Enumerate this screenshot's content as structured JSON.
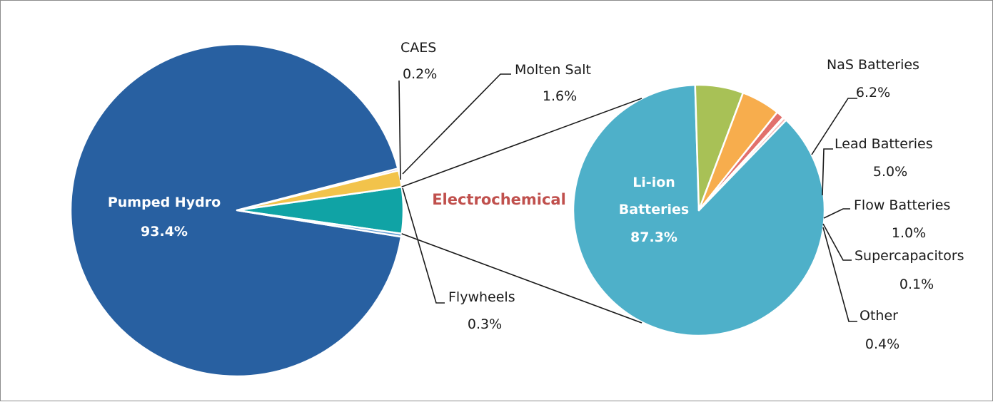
{
  "chart_data": [
    {
      "type": "pie",
      "series": [
        {
          "label": "Pumped Hydro",
          "value": 93.4,
          "value_label": "93.4%",
          "color": "#2860a1"
        },
        {
          "label": "Flywheels",
          "value": 0.3,
          "value_label": "0.3%",
          "color": "#5d9bd3"
        },
        {
          "label": "Electrochemical",
          "value": 4.5,
          "value_label": "",
          "color": "#10a3a5"
        },
        {
          "label": "Molten Salt",
          "value": 1.6,
          "value_label": "1.6%",
          "color": "#f2c34b"
        },
        {
          "label": "CAES",
          "value": 0.2,
          "value_label": "0.2%",
          "color": "#9e7fc1"
        }
      ]
    },
    {
      "type": "pie",
      "series": [
        {
          "label": "Li-ion Batteries",
          "value": 87.3,
          "value_label": "87.3%",
          "color": "#4eb0c9"
        },
        {
          "label": "NaS Batteries",
          "value": 6.2,
          "value_label": "6.2%",
          "color": "#a8c156"
        },
        {
          "label": "Lead Batteries",
          "value": 5.0,
          "value_label": "5.0%",
          "color": "#f7ad4d"
        },
        {
          "label": "Flow Batteries",
          "value": 1.0,
          "value_label": "1.0%",
          "color": "#e2706c"
        },
        {
          "label": "Supercapacitors",
          "value": 0.1,
          "value_label": "0.1%",
          "color": "#c7c7c7"
        },
        {
          "label": "Other",
          "value": 0.4,
          "value_label": "0.4%",
          "color": "#f4b7b5"
        }
      ]
    }
  ],
  "connector_label": "Electrochemical",
  "colors": {
    "connector_label": "#c0504d",
    "leader_line": "#1a1a1a",
    "slice_border": "#ffffff"
  }
}
